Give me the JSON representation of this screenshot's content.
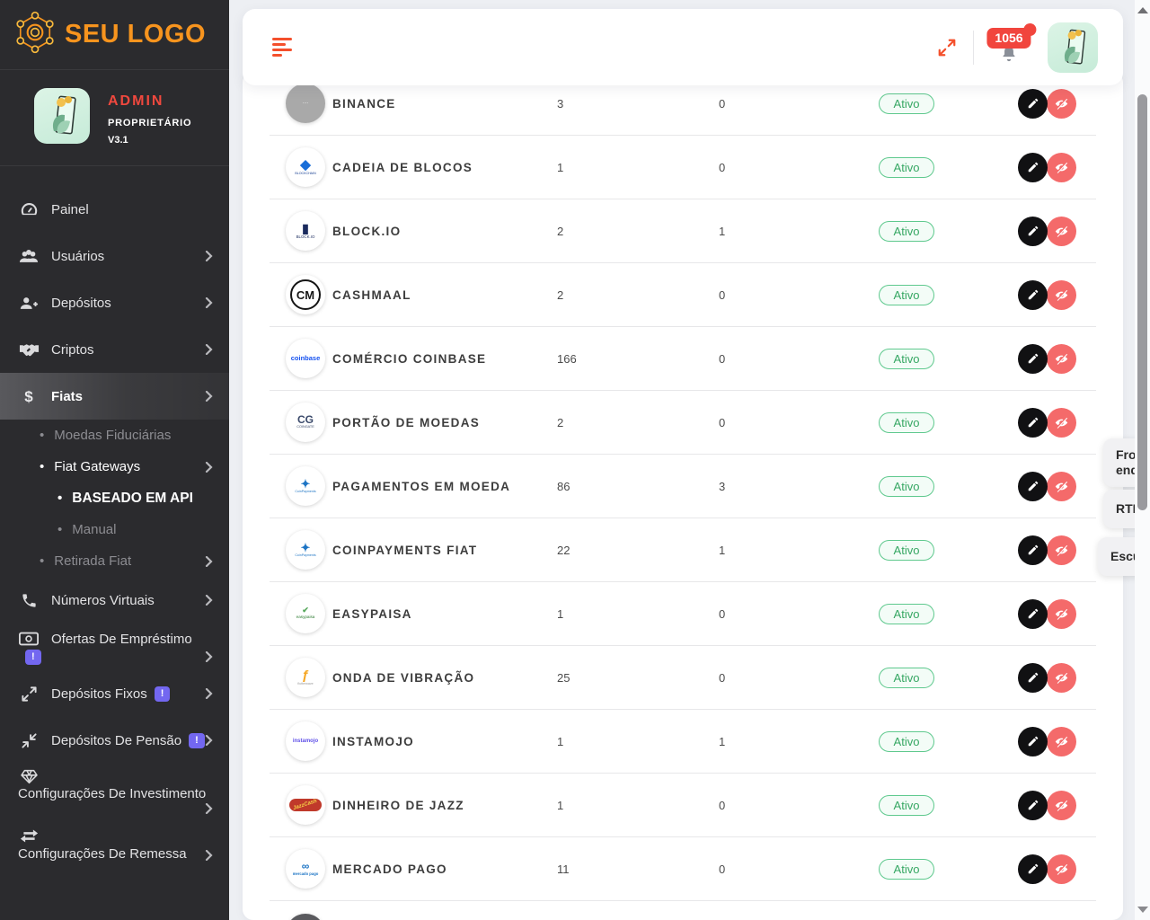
{
  "sidebar": {
    "logo_text": "SEU LOGO",
    "profile": {
      "name": "ADMIN",
      "role": "PROPRIETÁRIO",
      "version": "V3.1"
    },
    "menu": [
      {
        "label": "Painel",
        "icon": "gauge-icon"
      },
      {
        "label": "Usuários",
        "icon": "users-icon",
        "chevron": true
      },
      {
        "label": "Depósitos",
        "icon": "user-plus-icon",
        "chevron": true
      },
      {
        "label": "Criptos",
        "icon": "handshake-icon",
        "chevron": true
      },
      {
        "label": "Fiats",
        "icon": "dollar-icon",
        "chevron": true,
        "active": true
      },
      {
        "label": "Moedas Fiduciárias",
        "sub": 1,
        "muted": true
      },
      {
        "label": "Fiat Gateways",
        "sub": 1,
        "chevron": true,
        "on": true
      },
      {
        "label": "BASEADO EM API",
        "sub": 2,
        "on": true
      },
      {
        "label": "Manual",
        "sub": 2,
        "muted": true
      },
      {
        "label": "Retirada Fiat",
        "sub": 1,
        "muted": true,
        "chevron": true
      },
      {
        "label": "Números Virtuais",
        "icon": "phone-icon",
        "chevron": true
      },
      {
        "label": "Ofertas De Empréstimo",
        "icon": "money-icon",
        "chevron": true,
        "badge": "!"
      },
      {
        "label": "Depósitos Fixos",
        "icon": "expand-arrows-icon",
        "chevron": true,
        "badge": "!"
      },
      {
        "label": "Depósitos De Pensão",
        "icon": "compress-arrows-icon",
        "chevron": true,
        "badge": "!"
      },
      {
        "label": "Configurações De Investimento",
        "icon": "gem-icon",
        "chevron": true,
        "two_line": true
      },
      {
        "label": "Configurações De Remessa",
        "icon": "exchange-icon",
        "chevron": true,
        "two_line": true
      }
    ]
  },
  "topbar": {
    "icons": [
      "hamburger-icon",
      "expand-icon",
      "bell-icon"
    ],
    "notification_count": "1056"
  },
  "table": {
    "rows": [
      {
        "name": "BINANCE",
        "value1": "3",
        "value2": "0",
        "status": "Ativo",
        "logo": {
          "name": "binance-logo",
          "bg": "#a9a9a9",
          "label": "∙∙∙∙",
          "fg": "#ffffff",
          "size": 6
        }
      },
      {
        "name": "CADEIA DE BLOCOS",
        "value1": "1",
        "value2": "0",
        "status": "Ativo",
        "logo": {
          "name": "blockchain-logo",
          "glyph": "◆",
          "glyph_color": "#1a6ed8",
          "glyph_size": 15,
          "label": "BLOCKCHAIN",
          "fg": "#123a8f",
          "size": 3.6
        }
      },
      {
        "name": "BLOCK.IO",
        "value1": "2",
        "value2": "1",
        "status": "Ativo",
        "logo": {
          "name": "blockio-logo",
          "glyph": "▮",
          "glyph_color": "#1b2b5e",
          "glyph_size": 14,
          "label": "BLOCK.IO",
          "fg": "#1b2b5e",
          "size": 4.4
        }
      },
      {
        "name": "CASHMAAL",
        "value1": "2",
        "value2": "0",
        "status": "Ativo",
        "logo": {
          "name": "cashmaal-logo",
          "ring": true,
          "glyph": "CM",
          "glyph_color": "#151515",
          "glyph_size": 13
        }
      },
      {
        "name": "COMÉRCIO COINBASE",
        "value1": "166",
        "value2": "0",
        "status": "Ativo",
        "logo": {
          "name": "coinbase-logo",
          "label": "coinbase",
          "fg": "#1652f0",
          "size": 7.5,
          "bold": true
        }
      },
      {
        "name": "PORTÃO DE MOEDAS",
        "value1": "2",
        "value2": "0",
        "status": "Ativo",
        "logo": {
          "name": "coingate-logo",
          "glyph": "CG",
          "glyph_color": "#3b4a6b",
          "glyph_size": 12,
          "label": "COINGATE",
          "fg": "#3b4a6b",
          "size": 3.8
        }
      },
      {
        "name": "PAGAMENTOS EM MOEDA",
        "value1": "86",
        "value2": "3",
        "status": "Ativo",
        "logo": {
          "name": "coinpayments-logo",
          "glyph": "✦",
          "glyph_color": "#1d74c4",
          "glyph_size": 13,
          "label": "CoinPayments",
          "fg": "#1d74c4",
          "size": 3.6
        }
      },
      {
        "name": "COINPAYMENTS FIAT",
        "value1": "22",
        "value2": "1",
        "status": "Ativo",
        "logo": {
          "name": "coinpayments-logo",
          "glyph": "✦",
          "glyph_color": "#1d74c4",
          "glyph_size": 13,
          "label": "CoinPayments",
          "fg": "#1d74c4",
          "size": 3.6
        }
      },
      {
        "name": "EASYPAISA",
        "value1": "1",
        "value2": "0",
        "status": "Ativo",
        "logo": {
          "name": "easypaisa-logo",
          "glyph": "✔",
          "glyph_color": "#57a85c",
          "glyph_size": 9,
          "label": "easypaisa",
          "fg": "#2e7d32",
          "size": 4.6
        }
      },
      {
        "name": "ONDA DE VIBRAÇÃO",
        "value1": "25",
        "value2": "0",
        "status": "Ativo",
        "logo": {
          "name": "flutterwave-logo",
          "glyph": "ƒ",
          "glyph_color": "#f5a623",
          "glyph_size": 15,
          "label": "flutterwave",
          "fg": "#9a9a9a",
          "size": 3.6
        }
      },
      {
        "name": "INSTAMOJO",
        "value1": "1",
        "value2": "1",
        "status": "Ativo",
        "logo": {
          "name": "instamojo-logo",
          "label": "instamojo",
          "fg": "#5f50e8",
          "size": 6,
          "bold": true
        }
      },
      {
        "name": "DINHEIRO DE JAZZ",
        "value1": "1",
        "value2": "0",
        "status": "Ativo",
        "logo": {
          "name": "jazzcash-logo",
          "chip_bg": "#c0392b",
          "label": "JazzCash",
          "fg": "#f7d347",
          "size": 6,
          "italic": true,
          "rotate": -18,
          "bold": true
        }
      },
      {
        "name": "MERCADO PAGO",
        "value1": "11",
        "value2": "0",
        "status": "Ativo",
        "logo": {
          "name": "mercadopago-logo",
          "glyph": "∞",
          "glyph_color": "#1a73c4",
          "glyph_size": 12,
          "label": "mercado pago",
          "fg": "#1a73c4",
          "size": 4.2,
          "bold": true
        }
      }
    ],
    "partial_row": {
      "logo": {
        "name": "hidden-gateway-logo",
        "bg": "#5a5a5e"
      }
    }
  },
  "floating_buttons": [
    {
      "label": "Front end",
      "name": "front-end-button"
    },
    {
      "label": "RTL",
      "name": "rtl-button"
    },
    {
      "label": "Escuro",
      "name": "dark-mode-button"
    }
  ],
  "colors": {
    "accent_orange": "#f7941e",
    "accent_red": "#f4502c",
    "admin_red": "#f0483e",
    "badge_purple": "#7367f0",
    "status_green": "#36a763",
    "action_black": "#111113",
    "action_red": "#f46a6a",
    "notification_red": "#f1453d",
    "sidebar_bg": "#2b2b2e"
  }
}
